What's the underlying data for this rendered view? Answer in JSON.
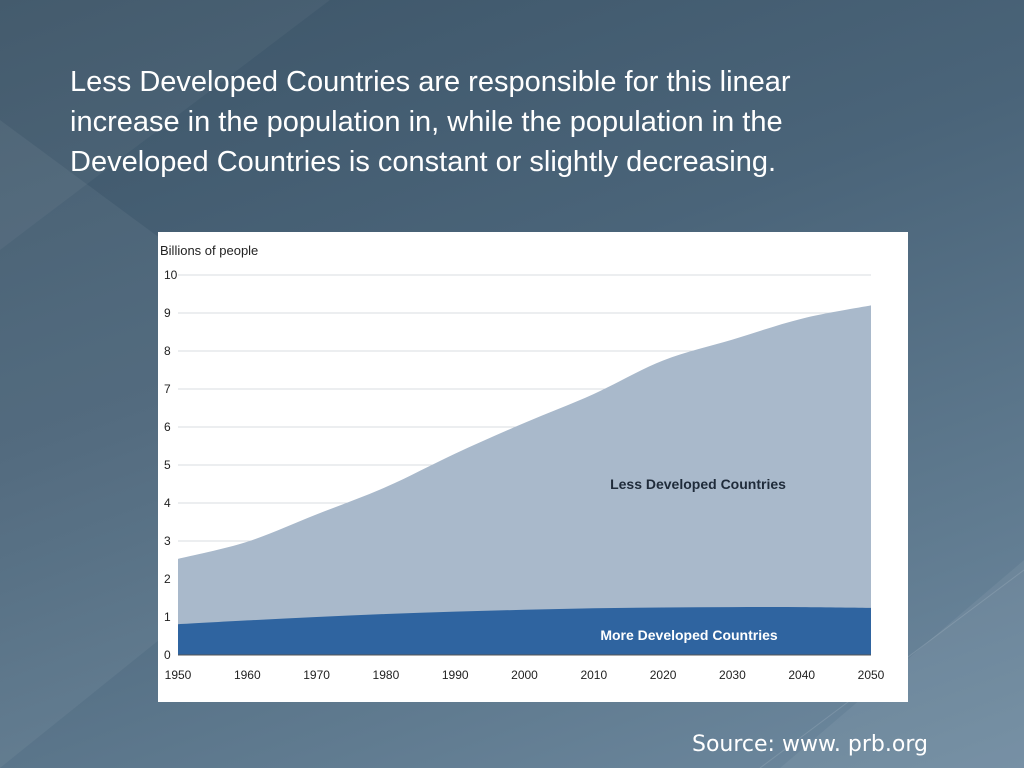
{
  "slide": {
    "headline_lines": [
      "Less Developed Countries are responsible for this linear",
      "increase in the population in, while the population in the",
      "Developed Countries is constant or slightly decreasing."
    ],
    "source": "Source: www. prb.org"
  },
  "colors": {
    "background": "#4a6479",
    "less_developed_fill": "#a9b9cb",
    "more_developed_fill": "#2f64a0",
    "gridline": "#d9dde2"
  },
  "chart_data": {
    "type": "area",
    "stacked": true,
    "ylabel": "Billions of people",
    "xlabel": "",
    "ylim": [
      0,
      10
    ],
    "yticks": [
      0,
      1,
      2,
      3,
      4,
      5,
      6,
      7,
      8,
      9,
      10
    ],
    "xlim": [
      1950,
      2050
    ],
    "xticks": [
      1950,
      1960,
      1970,
      1980,
      1990,
      2000,
      2010,
      2020,
      2030,
      2040,
      2050
    ],
    "grid": true,
    "x": [
      1950,
      1960,
      1970,
      1980,
      1990,
      2000,
      2010,
      2020,
      2030,
      2040,
      2050
    ],
    "series": [
      {
        "name": "More Developed Countries",
        "values": [
          0.81,
          0.91,
          1.0,
          1.08,
          1.14,
          1.19,
          1.23,
          1.25,
          1.26,
          1.26,
          1.24
        ]
      },
      {
        "name": "Less Developed Countries",
        "values": [
          1.72,
          2.07,
          2.7,
          3.34,
          4.16,
          4.92,
          5.64,
          6.5,
          7.04,
          7.59,
          7.96
        ]
      }
    ],
    "totals": [
      2.53,
      2.98,
      3.7,
      4.42,
      5.3,
      6.11,
      6.87,
      7.75,
      8.3,
      8.85,
      9.2
    ]
  }
}
